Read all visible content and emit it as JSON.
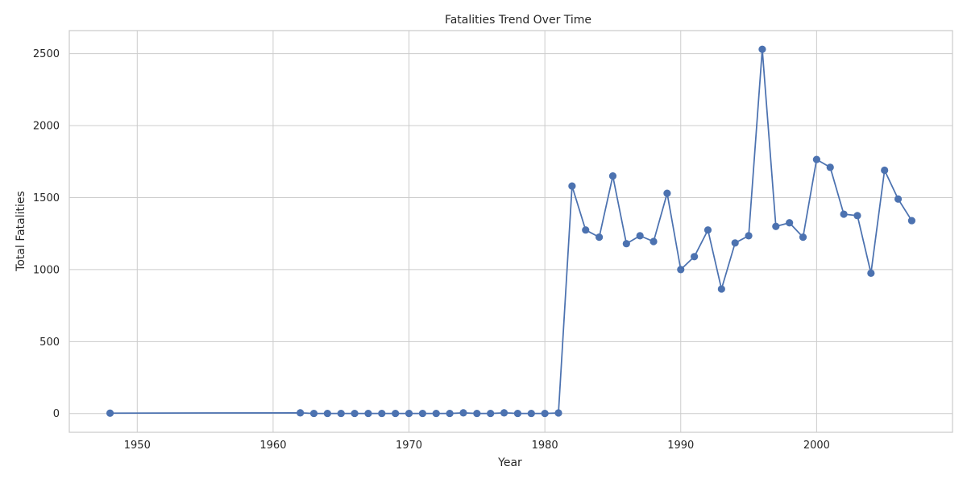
{
  "chart_data": {
    "type": "line",
    "title": "Fatalities Trend Over Time",
    "xlabel": "Year",
    "ylabel": "Total Fatalities",
    "xlim": [
      1945,
      2010
    ],
    "ylim": [
      -130,
      2660
    ],
    "xticks": [
      1950,
      1960,
      1970,
      1980,
      1990,
      2000
    ],
    "yticks": [
      0,
      500,
      1000,
      1500,
      2000,
      2500
    ],
    "grid": true,
    "marker": "circle",
    "color": "#4c72b0",
    "series": [
      {
        "x": [
          1948,
          1962,
          1963,
          1964,
          1965,
          1966,
          1967,
          1968,
          1969,
          1970,
          1971,
          1972,
          1973,
          1974,
          1975,
          1976,
          1977,
          1978,
          1979,
          1980,
          1981,
          1982,
          1983,
          1984,
          1985,
          1986,
          1987,
          1988,
          1989,
          1990,
          1991,
          1992,
          1993,
          1994,
          1995,
          1996,
          1997,
          1998,
          1999,
          2000,
          2001,
          2002,
          2003,
          2004,
          2005,
          2006,
          2007
        ],
        "y": [
          3,
          5,
          1,
          1,
          1,
          1,
          1,
          1,
          1,
          1,
          1,
          1,
          1,
          5,
          1,
          1,
          5,
          1,
          1,
          1,
          4,
          1580,
          1275,
          1225,
          1650,
          1180,
          1235,
          1195,
          1530,
          1000,
          1090,
          1275,
          865,
          1185,
          1235,
          2530,
          1300,
          1325,
          1225,
          1765,
          1710,
          1385,
          1375,
          975,
          1690,
          1490,
          1340
        ]
      }
    ]
  }
}
